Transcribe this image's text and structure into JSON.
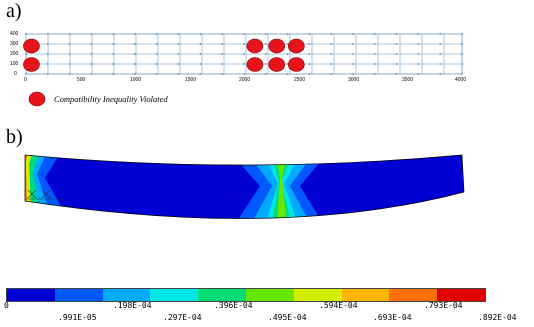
{
  "panel_a": {
    "label": "a)",
    "y_ticks": [
      "400",
      "300",
      "200",
      "100",
      "0"
    ],
    "x_ticks": [
      "0",
      "500",
      "1000",
      "1500",
      "2000",
      "2500",
      "3000",
      "3500",
      "4000"
    ],
    "legend": {
      "text": "Compatibility Inequality Violated",
      "marker_color": "#e8141c"
    },
    "markers": [
      {
        "x": 50,
        "y": 280
      },
      {
        "x": 50,
        "y": 95
      },
      {
        "x": 2100,
        "y": 280
      },
      {
        "x": 2100,
        "y": 95
      },
      {
        "x": 2300,
        "y": 280
      },
      {
        "x": 2300,
        "y": 95
      },
      {
        "x": 2480,
        "y": 280
      },
      {
        "x": 2480,
        "y": 95
      }
    ],
    "x_range": [
      0,
      4000
    ],
    "y_range": [
      0,
      400
    ]
  },
  "panel_b": {
    "label": "b)",
    "colorbar": {
      "colors": [
        "#0000d4",
        "#0058ff",
        "#00aaff",
        "#00e6e6",
        "#00dd77",
        "#66e600",
        "#d4ee00",
        "#ffb400",
        "#ff7000",
        "#e00000"
      ],
      "labels_top": [
        "0",
        ".198E-04",
        ".396E-04",
        ".594E-04",
        ".793E-04"
      ],
      "labels_bottom": [
        ".991E-05",
        ".297E-04",
        ".495E-04",
        ".693E-04",
        ".892E-04"
      ]
    }
  }
}
